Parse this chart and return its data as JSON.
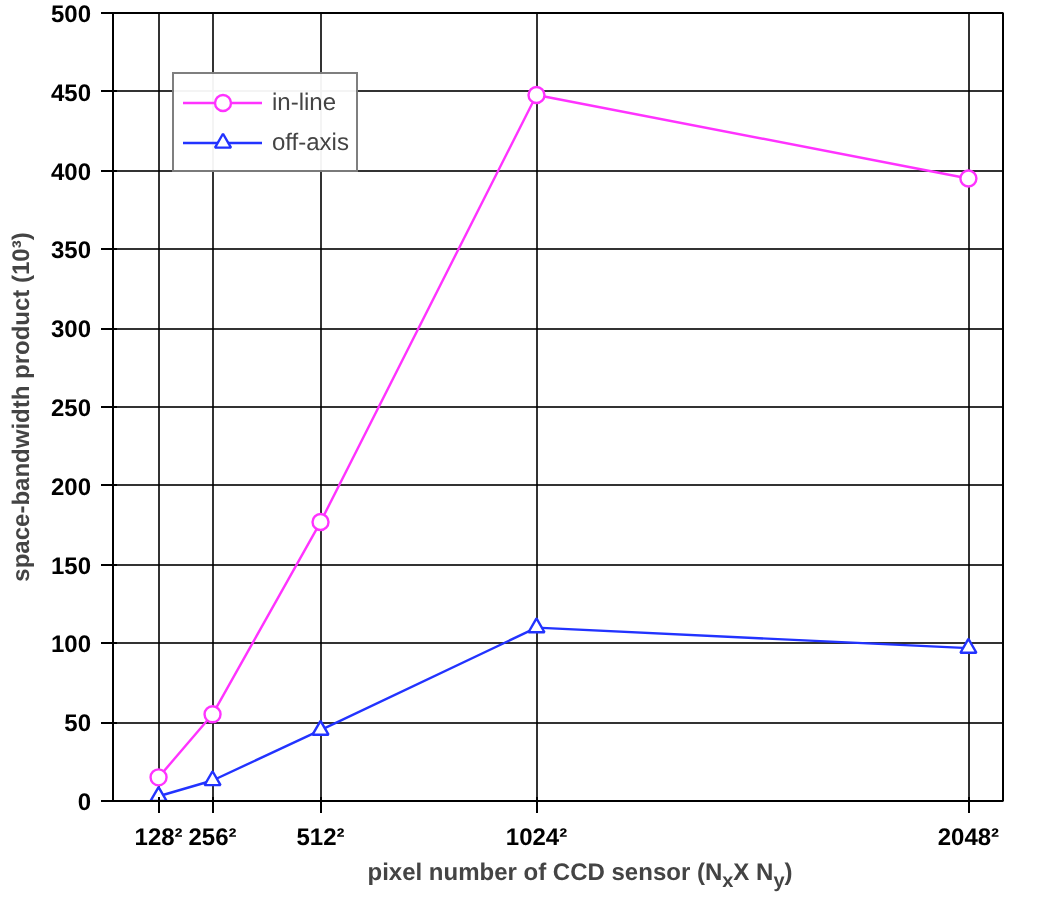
{
  "chart_data": {
    "type": "line",
    "xlabel": "pixel number of CCD sensor (N$_{x}$X N$_{y}$)",
    "ylabel": "space-bandwidth product (10³)",
    "x": [
      128,
      256,
      512,
      1024,
      2048
    ],
    "xlim": [
      20,
      2130
    ],
    "xticks": [
      {
        "value": 128,
        "label": "128²"
      },
      {
        "value": 256,
        "label": "256²"
      },
      {
        "value": 512,
        "label": "512²"
      },
      {
        "value": 1024,
        "label": "1024²"
      },
      {
        "value": 2048,
        "label": "2048²"
      }
    ],
    "ylim": [
      0,
      500
    ],
    "yticks": [
      0,
      50,
      100,
      150,
      200,
      250,
      300,
      350,
      400,
      450,
      500
    ],
    "grid": true,
    "legend": "top left",
    "series": [
      {
        "name": "in-line",
        "color": "#ff33ff",
        "marker": "circle",
        "values": [
          15,
          55,
          177,
          448,
          395
        ]
      },
      {
        "name": "off-axis",
        "color": "#2233ff",
        "marker": "triangle",
        "values": [
          3,
          13,
          45,
          110,
          97
        ]
      }
    ]
  }
}
